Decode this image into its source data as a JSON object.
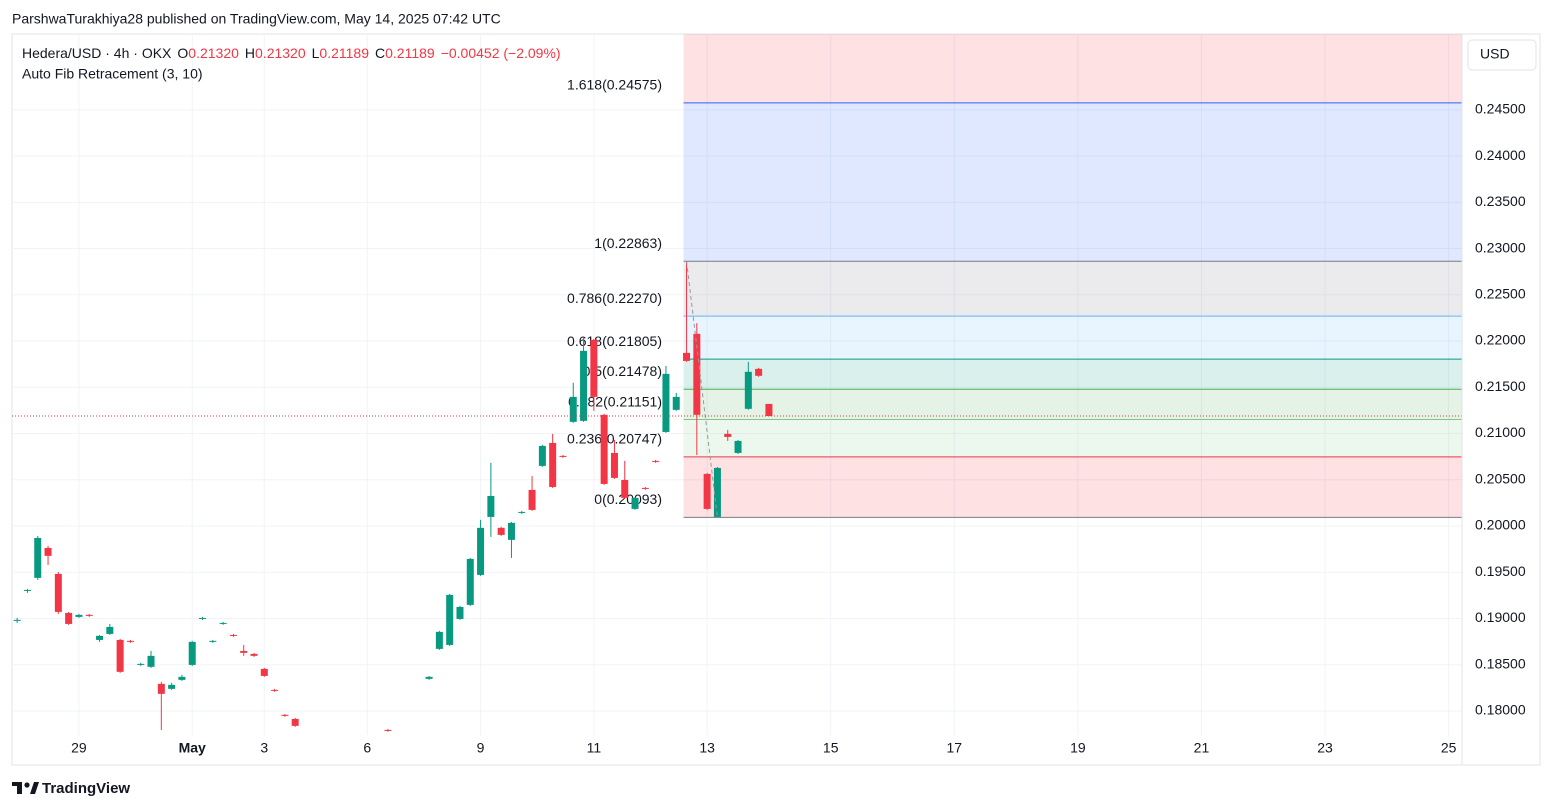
{
  "header": {
    "attribution": "ParshwaTurakhiya28 published on TradingView.com, May 14, 2025 07:42 UTC",
    "footer": "TradingView"
  },
  "chart_data": {
    "type": "candlestick",
    "title": "Hedera/USD · 4h · OKX",
    "ohlc_legend": [
      {
        "label": "O",
        "value": "0.21320"
      },
      {
        "label": "H",
        "value": "0.21320"
      },
      {
        "label": "L",
        "value": "0.21189"
      },
      {
        "label": "C",
        "value": "0.21189"
      }
    ],
    "change": "−0.00452 (−2.09%)",
    "indicator": "Auto Fib Retracement (3, 10)",
    "currency": "USD",
    "x": [
      0,
      1,
      2,
      3,
      4,
      5,
      6,
      7,
      8,
      9,
      10,
      11,
      12,
      13,
      14,
      15,
      16,
      17,
      18,
      19,
      20,
      21,
      22,
      23,
      24,
      25,
      26,
      27,
      36,
      40,
      41,
      42,
      43,
      44,
      45,
      46,
      47,
      48,
      49,
      50,
      51,
      52,
      53,
      54,
      55,
      56,
      57,
      58,
      59,
      60,
      61,
      62,
      63,
      64,
      65,
      66,
      67,
      68,
      69,
      70,
      71,
      72,
      73
    ],
    "open": [
      0.18974,
      0.19298,
      0.19439,
      0.19763,
      0.19482,
      0.1906,
      0.19017,
      0.19039,
      0.18768,
      0.18833,
      0.18768,
      0.18758,
      0.18498,
      0.18477,
      0.18293,
      0.18239,
      0.18336,
      0.18498,
      0.18995,
      0.18747,
      0.18941,
      0.18822,
      0.18649,
      0.18617,
      0.18455,
      0.18228,
      0.17958,
      0.17914,
      0.17795,
      0.18347,
      0.18671,
      0.18714,
      0.18995,
      0.19147,
      0.19471,
      0.20098,
      0.1998,
      0.1985,
      0.20142,
      0.2039,
      0.2065,
      0.20898,
      0.20758,
      0.21126,
      0.21137,
      0.22013,
      0.21202,
      0.2079,
      0.20498,
      0.20185,
      0.20412,
      0.20704,
      0.21017,
      0.21256,
      0.21872,
      0.22078,
      0.20563,
      0.20098,
      0.20996,
      0.2079,
      0.21267,
      0.21699,
      0.2132
    ],
    "high": [
      0.19006,
      0.1932,
      0.19893,
      0.19785,
      0.19504,
      0.19071,
      0.1905,
      0.1905,
      0.18822,
      0.18941,
      0.18779,
      0.18768,
      0.1852,
      0.18649,
      0.18315,
      0.18304,
      0.1839,
      0.18758,
      0.19017,
      0.18768,
      0.18963,
      0.18833,
      0.18714,
      0.18628,
      0.18466,
      0.18239,
      0.17968,
      0.17925,
      0.17806,
      0.18379,
      0.18866,
      0.19266,
      0.19136,
      0.19655,
      0.20066,
      0.20682,
      0.19991,
      0.20044,
      0.20163,
      0.20541,
      0.20877,
      0.20996,
      0.20768,
      0.21548,
      0.22034,
      0.22023,
      0.21213,
      0.20931,
      0.20704,
      0.20314,
      0.20422,
      0.20715,
      0.21731,
      0.2144,
      0.22863,
      0.22193,
      0.20574,
      0.20639,
      0.21039,
      0.20931,
      0.21775,
      0.2171,
      0.2132
    ],
    "low": [
      0.18952,
      0.19277,
      0.19417,
      0.19579,
      0.1905,
      0.18931,
      0.19006,
      0.19017,
      0.18747,
      0.18822,
      0.18412,
      0.18736,
      0.18487,
      0.18466,
      0.17795,
      0.18228,
      0.18325,
      0.18487,
      0.18985,
      0.18736,
      0.18931,
      0.18801,
      0.18596,
      0.18585,
      0.18369,
      0.18207,
      0.17936,
      0.17828,
      0.17774,
      0.18336,
      0.1866,
      0.18703,
      0.18985,
      0.19136,
      0.1946,
      0.19882,
      0.19893,
      0.19655,
      0.20131,
      0.20163,
      0.20639,
      0.20412,
      0.20736,
      0.21115,
      0.21126,
      0.21245,
      0.20444,
      0.20509,
      0.20293,
      0.20174,
      0.2039,
      0.20682,
      0.21007,
      0.21245,
      0.21775,
      0.20768,
      0.20174,
      0.20093,
      0.2092,
      0.20779,
      0.21256,
      0.21613,
      0.21189
    ],
    "close": [
      0.18985,
      0.19309,
      0.19871,
      0.19677,
      0.19071,
      0.18941,
      0.19039,
      0.19028,
      0.18812,
      0.18909,
      0.18423,
      0.18747,
      0.18509,
      0.18596,
      0.18185,
      0.18282,
      0.18369,
      0.18747,
      0.19006,
      0.18758,
      0.18952,
      0.18812,
      0.18628,
      0.18596,
      0.18379,
      0.18217,
      0.17947,
      0.17839,
      0.17785,
      0.18369,
      0.18855,
      0.19255,
      0.19125,
      0.19644,
      0.1998,
      0.20325,
      0.19904,
      0.20034,
      0.20152,
      0.20174,
      0.20866,
      0.20422,
      0.20747,
      0.21396,
      0.21894,
      0.21396,
      0.20455,
      0.2052,
      0.20304,
      0.20304,
      0.20401,
      0.20693,
      0.21645,
      0.21396,
      0.21785,
      0.21202,
      0.20185,
      0.20628,
      0.20963,
      0.2092,
      0.21667,
      0.21624,
      0.21189
    ],
    "up_color": "#089981",
    "down_color": "#f23645",
    "xlim": [
      -0.5,
      140.3
    ],
    "xticks": [
      {
        "value": 6,
        "label": "29"
      },
      {
        "value": 17,
        "label": "May"
      },
      {
        "value": 24,
        "label": "3"
      },
      {
        "value": 34,
        "label": "6"
      },
      {
        "value": 45,
        "label": "9"
      },
      {
        "value": 56,
        "label": "11"
      },
      {
        "value": 67,
        "label": "13"
      },
      {
        "value": 79,
        "label": "15"
      },
      {
        "value": 91,
        "label": "17"
      },
      {
        "value": 103,
        "label": "19"
      },
      {
        "value": 115,
        "label": "21"
      },
      {
        "value": 127,
        "label": "23"
      },
      {
        "value": 139,
        "label": "25"
      }
    ],
    "ylim": [
      0.1774,
      0.2532
    ],
    "yticks": [
      {
        "value": 0.245,
        "label": "0.24500"
      },
      {
        "value": 0.24,
        "label": "0.24000"
      },
      {
        "value": 0.235,
        "label": "0.23500"
      },
      {
        "value": 0.23,
        "label": "0.23000"
      },
      {
        "value": 0.225,
        "label": "0.22500"
      },
      {
        "value": 0.22,
        "label": "0.22000"
      },
      {
        "value": 0.215,
        "label": "0.21500"
      },
      {
        "value": 0.21,
        "label": "0.21000"
      },
      {
        "value": 0.205,
        "label": "0.20500"
      },
      {
        "value": 0.2,
        "label": "0.20000"
      },
      {
        "value": 0.195,
        "label": "0.19500"
      },
      {
        "value": 0.19,
        "label": "0.19000"
      },
      {
        "value": 0.185,
        "label": "0.18500"
      },
      {
        "value": 0.18,
        "label": "0.18000"
      }
    ],
    "grid": true,
    "fib_above_color": "#f23645",
    "fib_levels": [
      {
        "label": "1.618(0.24575)",
        "value": 0.24575,
        "color": "#2962ff"
      },
      {
        "label": "1(0.22863)",
        "value": 0.22863,
        "color": "#787b86"
      },
      {
        "label": "0.786(0.22270)",
        "value": 0.2227,
        "color": "#64b5f6"
      },
      {
        "label": "0.618(0.21805)",
        "value": 0.21805,
        "color": "#089981"
      },
      {
        "label": "0.5(0.21478)",
        "value": 0.21478,
        "color": "#4caf50"
      },
      {
        "label": "0.382(0.21151)",
        "value": 0.21151,
        "color": "#81c784"
      },
      {
        "label": "0.236(0.20747)",
        "value": 0.20747,
        "color": "#f23645"
      },
      {
        "label": "0(0.20093)",
        "value": 0.20093,
        "color": "#787b86"
      }
    ]
  }
}
